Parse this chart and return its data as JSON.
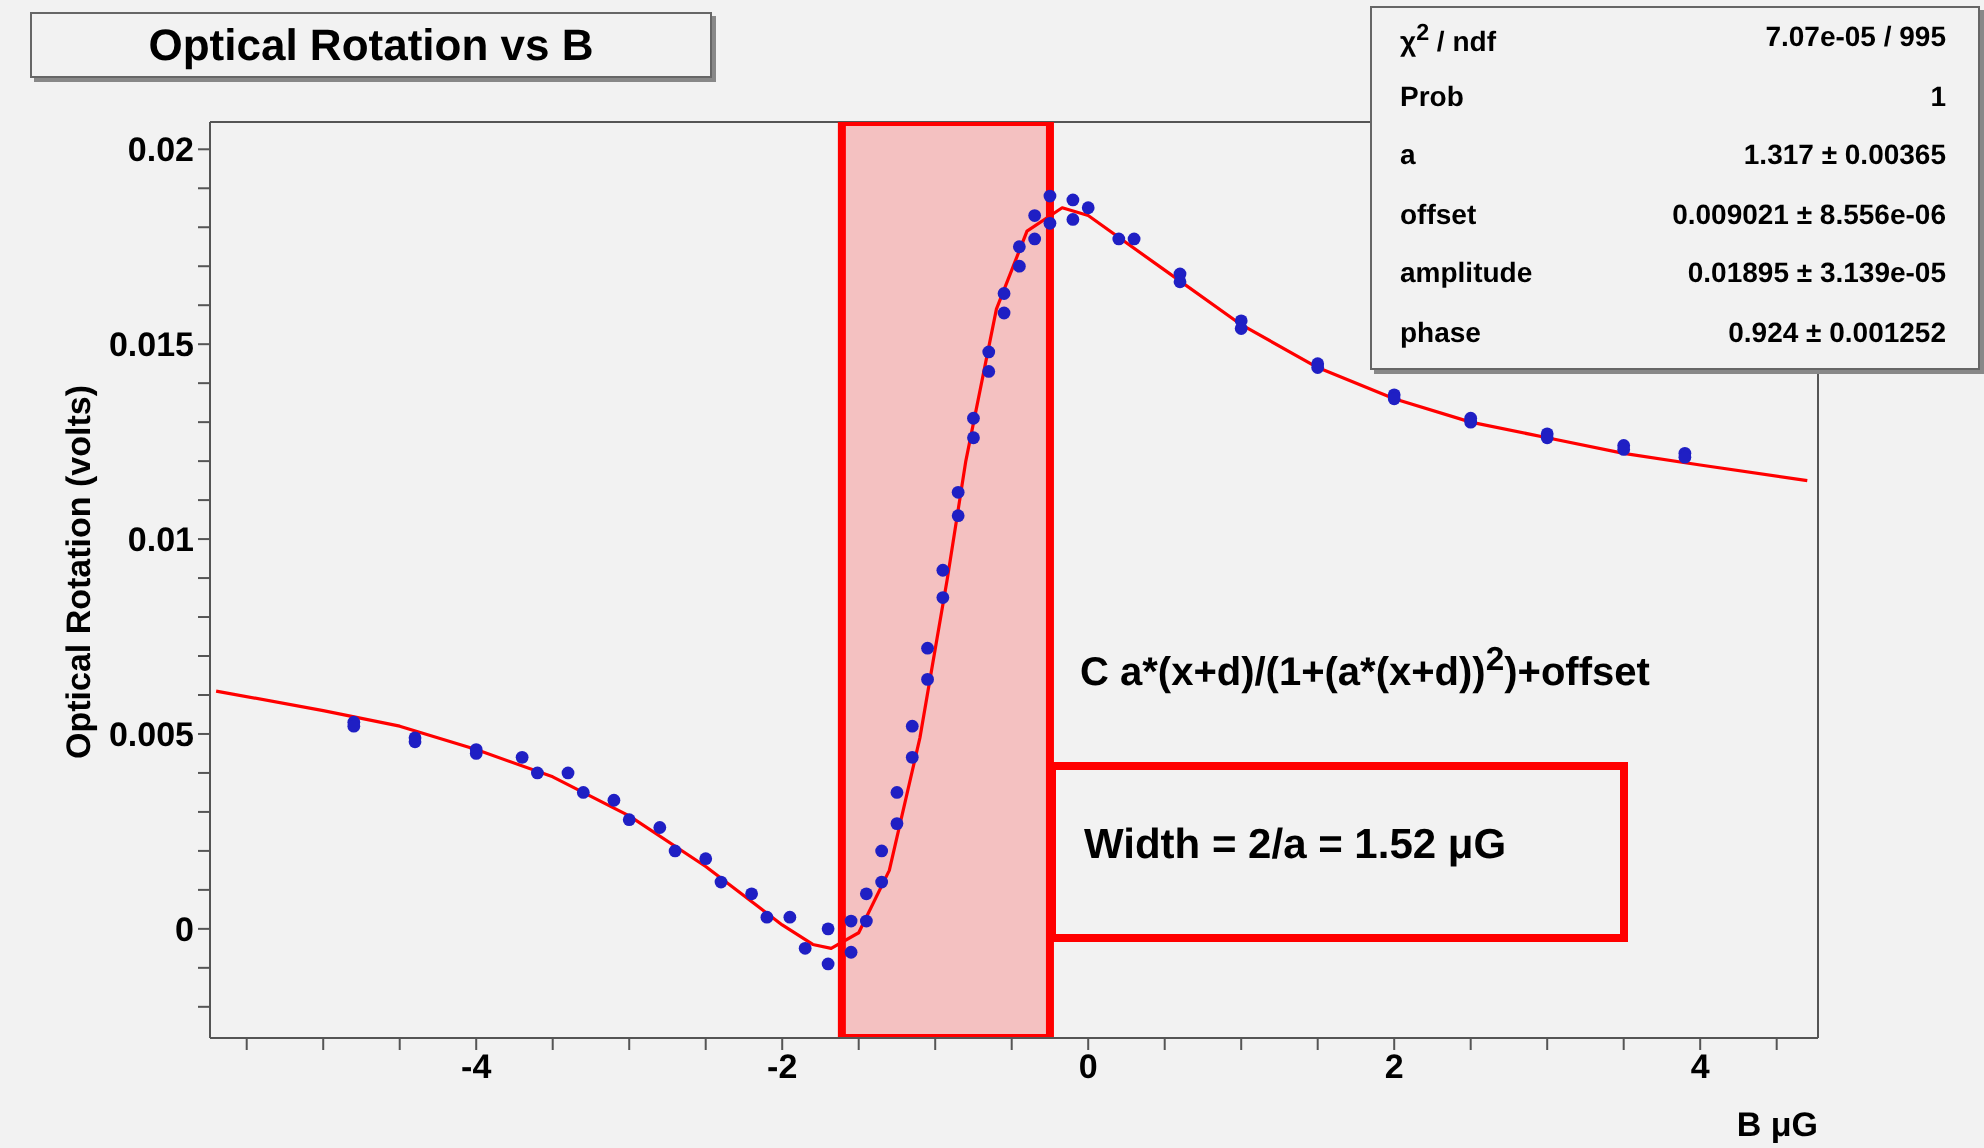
{
  "chart_data": {
    "type": "scatter",
    "title": "Optical Rotation vs B",
    "xlabel": "B μG",
    "ylabel": "Optical Rotation (volts)",
    "xlim": [
      -5.74,
      4.77
    ],
    "ylim": [
      -0.0028,
      0.0207
    ],
    "xticks": [
      {
        "value": -5.5,
        "label": null
      },
      {
        "value": -5,
        "label": null
      },
      {
        "value": -4.5,
        "label": null
      },
      -4,
      {
        "value": -3.5,
        "label": null
      },
      {
        "value": -3,
        "label": null
      },
      {
        "value": -2.5,
        "label": null
      },
      -2,
      {
        "value": -1.5,
        "label": null
      },
      {
        "value": -1,
        "label": null
      },
      {
        "value": -0.5,
        "label": null
      },
      0,
      {
        "value": 0.5,
        "label": null
      },
      {
        "value": 1,
        "label": null
      },
      {
        "value": 1.5,
        "label": null
      },
      2,
      {
        "value": 2.5,
        "label": null
      },
      {
        "value": 3,
        "label": null
      },
      {
        "value": 3.5,
        "label": null
      },
      4,
      {
        "value": 4.5,
        "label": null
      }
    ],
    "yticks": [
      {
        "value": -0.002,
        "label": null
      },
      {
        "value": -0.001,
        "label": null
      },
      0,
      {
        "value": 0.001,
        "label": null
      },
      {
        "value": 0.002,
        "label": null
      },
      {
        "value": 0.003,
        "label": null
      },
      {
        "value": 0.004,
        "label": null
      },
      0.005,
      {
        "value": 0.006,
        "label": null
      },
      {
        "value": 0.007,
        "label": null
      },
      {
        "value": 0.008,
        "label": null
      },
      {
        "value": 0.009,
        "label": null
      },
      0.01,
      {
        "value": 0.011,
        "label": null
      },
      {
        "value": 0.012,
        "label": null
      },
      {
        "value": 0.013,
        "label": null
      },
      {
        "value": 0.014,
        "label": null
      },
      0.015,
      {
        "value": 0.016,
        "label": null
      },
      {
        "value": 0.017,
        "label": null
      },
      {
        "value": 0.018,
        "label": null
      },
      {
        "value": 0.019,
        "label": null
      },
      0.02
    ],
    "grid": false,
    "legend": false,
    "series": [
      {
        "type": "scatter",
        "marker": "circle",
        "color": "#1f1fc4",
        "x": [
          -4.8,
          -4.4,
          -4,
          -3.7,
          -3.4,
          -3.1,
          -2.8,
          -2.5,
          -2.2,
          -1.95,
          -1.7,
          -1.55,
          -1.45,
          -1.35,
          -1.25,
          -1.15,
          -1.05,
          -0.95,
          -0.85,
          -0.75,
          -0.65,
          -0.55,
          -0.45,
          -0.35,
          -0.25,
          -0.1,
          0,
          0.3,
          0.6,
          1,
          1.5,
          2,
          2.5,
          3,
          3.5,
          3.9,
          -4.8,
          -4.4,
          -4,
          -3.6,
          -3.3,
          -3,
          -2.7,
          -2.4,
          -2.1,
          -1.85,
          -1.7,
          -1.55,
          -1.45,
          -1.35,
          -1.25,
          -1.15,
          -1.05,
          -0.95,
          -0.85,
          -0.75,
          -0.65,
          -0.55,
          -0.45,
          -0.35,
          -0.25,
          -0.1,
          0.2,
          0.6,
          1,
          1.5,
          2,
          2.5,
          3,
          3.5,
          3.9
        ],
        "values": [
          0.0053,
          0.0049,
          0.0046,
          0.0044,
          0.004,
          0.0033,
          0.0026,
          0.0018,
          0.0009,
          0.0003,
          0.0,
          0.0002,
          0.0009,
          0.002,
          0.0035,
          0.0052,
          0.0072,
          0.0092,
          0.0112,
          0.0131,
          0.0148,
          0.0163,
          0.0175,
          0.0183,
          0.0188,
          0.0187,
          0.0185,
          0.0177,
          0.0168,
          0.0156,
          0.0145,
          0.0137,
          0.0131,
          0.0127,
          0.0124,
          0.0122,
          0.0052,
          0.0048,
          0.0045,
          0.004,
          0.0035,
          0.0028,
          0.002,
          0.0012,
          0.0003,
          -0.0005,
          -0.0009,
          -0.0006,
          0.0002,
          0.0012,
          0.0027,
          0.0044,
          0.0064,
          0.0085,
          0.0106,
          0.0126,
          0.0143,
          0.0158,
          0.017,
          0.0177,
          0.0181,
          0.0182,
          0.0177,
          0.0166,
          0.0154,
          0.0144,
          0.0136,
          0.013,
          0.0126,
          0.0123,
          0.0121
        ]
      },
      {
        "type": "line",
        "marker": "none",
        "line_style": "solid",
        "color": "#ff0000",
        "x": [
          -5.7,
          -5,
          -4.5,
          -4,
          -3.5,
          -3,
          -2.5,
          -2,
          -1.8,
          -1.68,
          -1.5,
          -1.3,
          -1.1,
          -0.92,
          -0.8,
          -0.6,
          -0.4,
          -0.17,
          0,
          0.5,
          1,
          1.5,
          2,
          2.5,
          3,
          3.5,
          4,
          4.7
        ],
        "values": [
          0.0061,
          0.0056,
          0.0052,
          0.0046,
          0.0039,
          0.0029,
          0.0016,
          0.0001,
          -0.0004,
          -0.0005,
          -0.0001,
          0.0015,
          0.0049,
          0.009,
          0.012,
          0.0159,
          0.0179,
          0.0185,
          0.0183,
          0.0169,
          0.0155,
          0.0144,
          0.0136,
          0.013,
          0.0126,
          0.0122,
          0.0119,
          0.0115
        ]
      }
    ],
    "bands": [
      {
        "axis": "x",
        "from": -1.61,
        "to": -0.25,
        "color": "#ff0000"
      }
    ],
    "annotations": [
      "C a*(x+d)/(1+(a*(x+d))$^{2}$)+offset",
      "Width = 2/a = 1.52 μG",
      "χ$^{2}$ / ndf",
      "7.07e-05 / 995",
      "Prob",
      "1",
      "a",
      "1.317 ± 0.00365",
      "offset",
      "0.009021 ± 8.556e-06",
      "amplitude",
      "0.01895 ± 3.139e-05",
      "phase",
      "0.924 ± 0.001252"
    ]
  }
}
